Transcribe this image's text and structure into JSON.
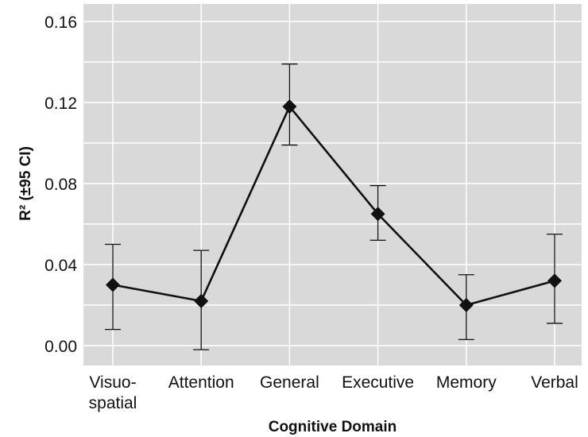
{
  "chart_data": {
    "type": "line",
    "title": "",
    "xlabel": "Cognitive Domain",
    "ylabel": "R² (±95 CI)",
    "categories": [
      [
        "Visuo-",
        "spatial"
      ],
      [
        "Attention"
      ],
      [
        "General"
      ],
      [
        "Executive"
      ],
      [
        "Memory"
      ],
      [
        "Verbal"
      ]
    ],
    "series": [
      {
        "values": [
          0.03,
          0.022,
          0.118,
          0.065,
          0.02,
          0.032
        ],
        "ci_low": [
          0.008,
          -0.002,
          0.099,
          0.052,
          0.003,
          0.011
        ],
        "ci_high": [
          0.05,
          0.047,
          0.139,
          0.079,
          0.035,
          0.055
        ]
      }
    ],
    "ylim": [
      -0.01,
      0.165
    ],
    "yticks": [
      0.0,
      0.04,
      0.08,
      0.12,
      0.16
    ],
    "ytick_labels": [
      "0.00",
      "0.04",
      "0.08",
      "0.12",
      "0.16"
    ],
    "grid": true,
    "colors": {
      "plot_background": "#d9d9d9",
      "grid": "#ffffff",
      "line": "#111111",
      "marker": "#111111"
    }
  }
}
